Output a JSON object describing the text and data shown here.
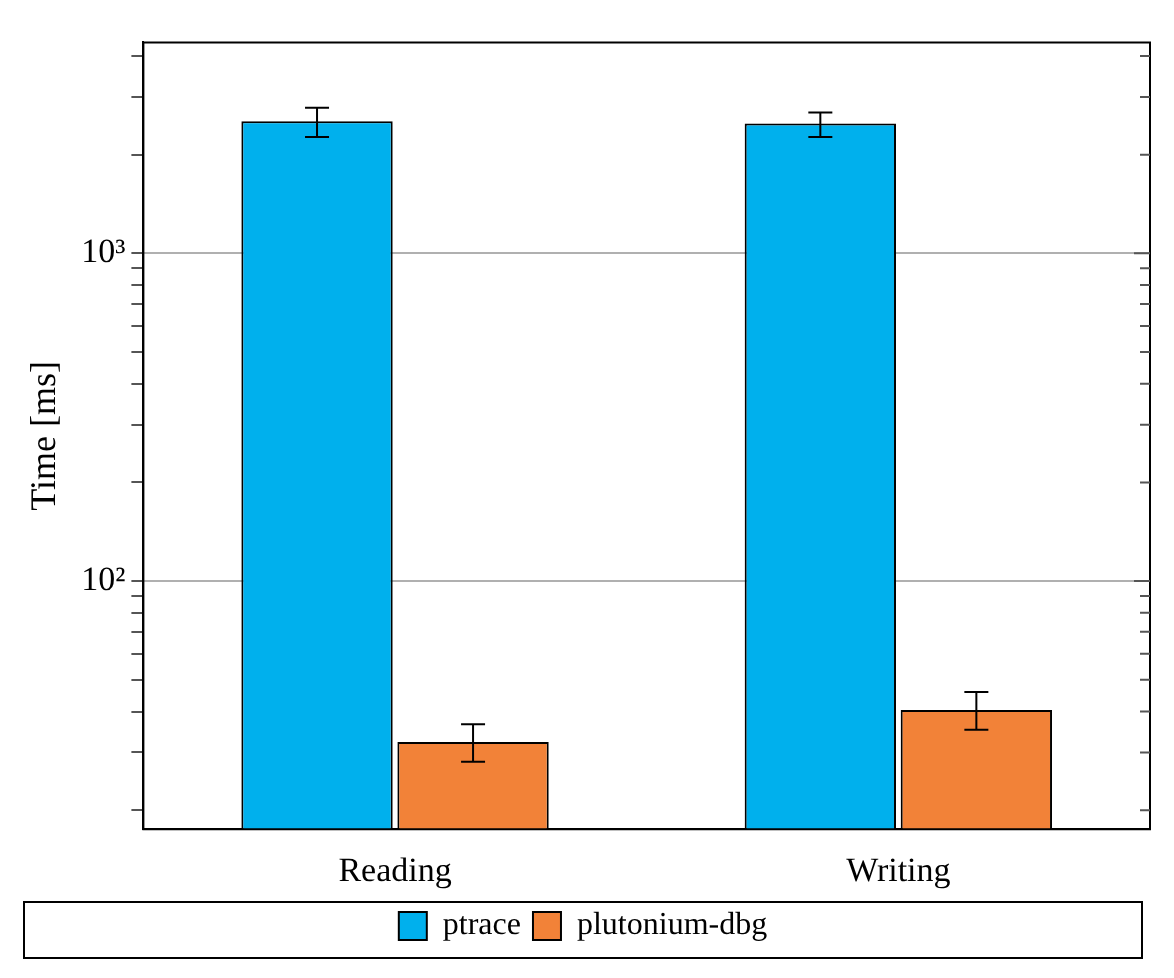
{
  "chart_data": {
    "type": "bar",
    "ylabel": "Time [ms]",
    "categories": [
      "Reading",
      "Writing"
    ],
    "series": [
      {
        "name": "ptrace",
        "color": "#00b0ed",
        "values": [
          2530,
          2490
        ],
        "errors": [
          [
            2265,
            2780
          ],
          [
            2265,
            2690
          ]
        ]
      },
      {
        "name": "plutonium-dbg",
        "color": "#f28238",
        "values": [
          32.3,
          40.4
        ],
        "errors": [
          [
            28.1,
            36.6
          ],
          [
            35.2,
            45.9
          ]
        ]
      }
    ],
    "log": "y",
    "ylim": [
      17.5,
      4400
    ],
    "yticks": [
      {
        "value": 20,
        "label": null
      },
      {
        "value": 30,
        "label": null
      },
      {
        "value": 40,
        "label": null
      },
      {
        "value": 50,
        "label": null
      },
      {
        "value": 60,
        "label": null
      },
      {
        "value": 70,
        "label": null
      },
      {
        "value": 80,
        "label": null
      },
      {
        "value": 90,
        "label": null
      },
      {
        "value": 100,
        "label": "10²"
      },
      {
        "value": 200,
        "label": null
      },
      {
        "value": 300,
        "label": null
      },
      {
        "value": 400,
        "label": null
      },
      {
        "value": 500,
        "label": null
      },
      {
        "value": 600,
        "label": null
      },
      {
        "value": 700,
        "label": null
      },
      {
        "value": 800,
        "label": null
      },
      {
        "value": 900,
        "label": null
      },
      {
        "value": 1000,
        "label": "10³"
      },
      {
        "value": 2000,
        "label": null
      },
      {
        "value": 3000,
        "label": null
      },
      {
        "value": 4000,
        "label": null
      }
    ],
    "grid": "y",
    "legend": "bottom"
  }
}
